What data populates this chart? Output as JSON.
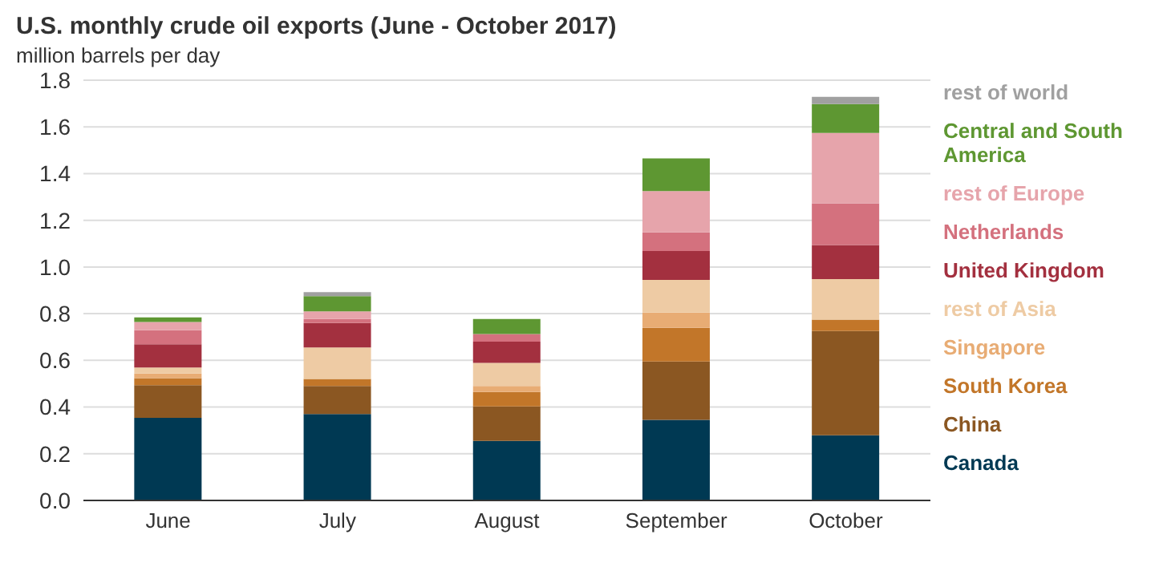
{
  "chart_data": {
    "type": "bar",
    "title": "U.S. monthly crude oil exports (June - October 2017)",
    "ylabel": "million barrels per day",
    "categories": [
      "June",
      "July",
      "August",
      "September",
      "October"
    ],
    "stacked": true,
    "series": [
      {
        "name": "Canada",
        "color": "#003953",
        "values": [
          0.354,
          0.37,
          0.255,
          0.345,
          0.279
        ]
      },
      {
        "name": "China",
        "color": "#8b5722",
        "values": [
          0.14,
          0.12,
          0.148,
          0.25,
          0.447
        ]
      },
      {
        "name": "South Korea",
        "color": "#c27629",
        "values": [
          0.03,
          0.03,
          0.062,
          0.144,
          0.049
        ]
      },
      {
        "name": "Singapore",
        "color": "#e8ac74",
        "values": [
          0.02,
          0,
          0.025,
          0.066,
          0
        ]
      },
      {
        "name": "rest of Asia",
        "color": "#eecba4",
        "values": [
          0.025,
          0.135,
          0.099,
          0.14,
          0.173
        ]
      },
      {
        "name": "United Kingdom",
        "color": "#a3303f",
        "values": [
          0.1,
          0.105,
          0.091,
          0.123,
          0.146
        ]
      },
      {
        "name": "Netherlands",
        "color": "#d4717e",
        "values": [
          0.06,
          0.017,
          0.033,
          0.08,
          0.179
        ]
      },
      {
        "name": "rest of Europe",
        "color": "#e6a4ab",
        "values": [
          0.035,
          0.033,
          0,
          0.177,
          0.301
        ]
      },
      {
        "name": "Central and South America",
        "color": "#5e9732",
        "values": [
          0.02,
          0.065,
          0.064,
          0.14,
          0.124
        ]
      },
      {
        "name": "rest of world",
        "color": "#a0a0a0",
        "values": [
          0,
          0.017,
          0,
          0,
          0.031
        ]
      }
    ],
    "ylim": [
      0,
      1.8
    ],
    "yticks": [
      {
        "value": 0,
        "label": "0.0"
      },
      {
        "value": 0.2,
        "label": "0.2"
      },
      {
        "value": 0.4,
        "label": "0.4"
      },
      {
        "value": 0.6,
        "label": "0.6"
      },
      {
        "value": 0.8,
        "label": "0.8"
      },
      {
        "value": 1,
        "label": "1.0"
      },
      {
        "value": 1.2,
        "label": "1.2"
      },
      {
        "value": 1.4,
        "label": "1.4"
      },
      {
        "value": 1.6,
        "label": "1.6"
      },
      {
        "value": 1.8,
        "label": "1.8"
      }
    ],
    "grid": "y",
    "legend": "right"
  }
}
